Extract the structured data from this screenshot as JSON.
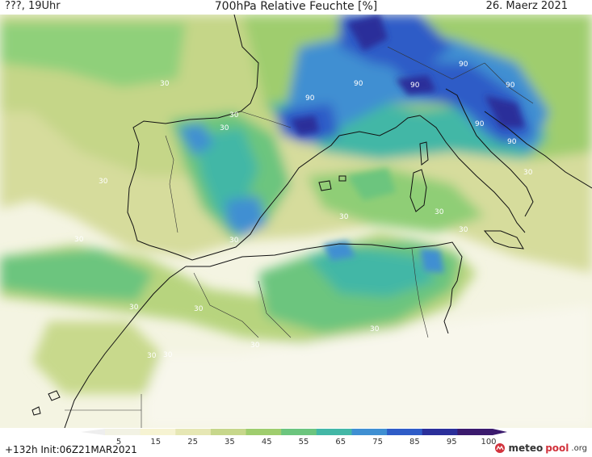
{
  "header": {
    "left": "???, 19Uhr",
    "title": "700hPa Relative Feuchte [%]",
    "date": "26. Maerz 2021"
  },
  "map_labels": [
    "30",
    "30",
    "30",
    "30",
    "30",
    "30",
    "30",
    "30",
    "30",
    "30",
    "30",
    "30",
    "30",
    "30",
    "30",
    "90",
    "90",
    "90",
    "90",
    "90",
    "90",
    "90"
  ],
  "legend": {
    "ticks": [
      "5",
      "15",
      "25",
      "35",
      "45",
      "55",
      "65",
      "75",
      "85",
      "95",
      "100"
    ],
    "colors": [
      "#f2f2e4",
      "#f6f3d2",
      "#e6e7b4",
      "#c7d78b",
      "#9fcd6e",
      "#6cc57e",
      "#43b7a6",
      "#3f8fd2",
      "#2f5cc7",
      "#2b2f9a",
      "#3b1a6d"
    ]
  },
  "footer": {
    "run": "+132h  Init:06Z21MAR2021",
    "brand_a": "meteo",
    "brand_b": "pool",
    "brand_c": ".org"
  }
}
